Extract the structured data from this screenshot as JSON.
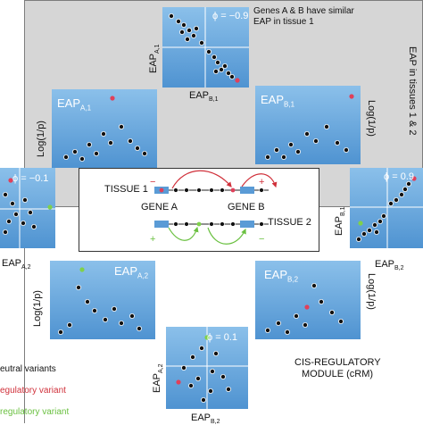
{
  "caption_top": "Genes A & B have similar EAP in tissue 1",
  "side_label": "EAP in tissues 1 & 2",
  "phi_top": "ϕ = −0.9",
  "phi_left": "ϕ = −0.1",
  "phi_right": "ϕ = 0.9",
  "phi_bottom": "ϕ = 0.1",
  "eap": "EAP",
  "sub_a1": "A,1",
  "sub_b1": "B,1",
  "sub_a2": "A,2",
  "sub_b2": "B,2",
  "log_label": "Log(1/p)",
  "tissue1": "TISSUE 1",
  "tissue2": "TISSUE 2",
  "gene_a": "GENE A",
  "gene_b": "GENE B",
  "plus": "+",
  "minus": "−",
  "crm_line1": "CIS-REGULATORY",
  "crm_line2": "MODULE (cRM)",
  "legend": [
    "eutral variants",
    "egulatory variant",
    "regulatory variant"
  ],
  "colors": {
    "panel": "#5a9bd6",
    "red": "#e0405a",
    "green": "#7fd14a",
    "variant": "#1a1a1a"
  }
}
